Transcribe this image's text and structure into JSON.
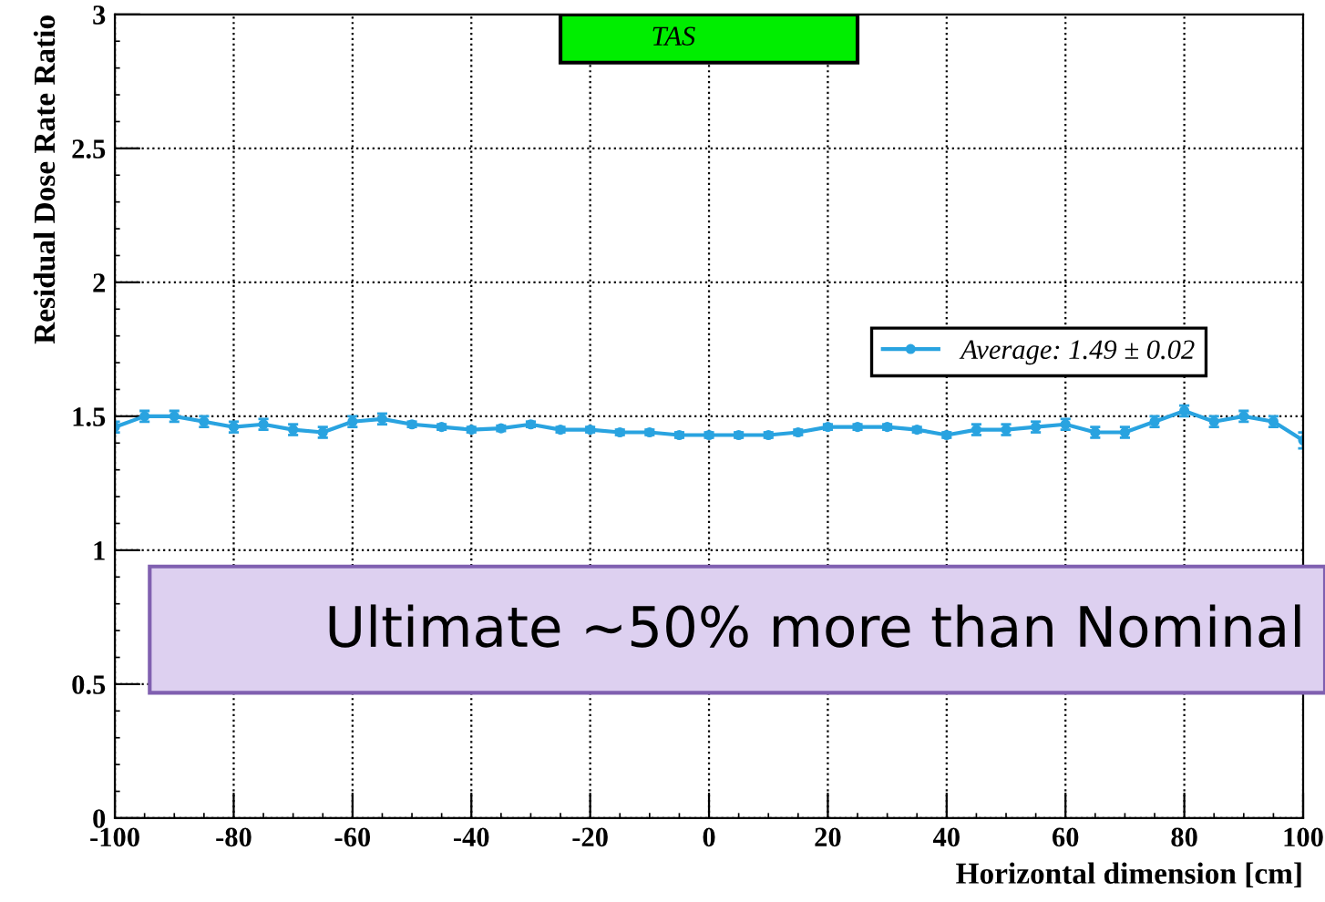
{
  "chart_data": {
    "type": "line",
    "xlabel": "Horizontal dimension [cm]",
    "ylabel": "Residual Dose Rate Ratio",
    "x": [
      -100,
      -95,
      -90,
      -85,
      -80,
      -75,
      -70,
      -65,
      -60,
      -55,
      -50,
      -45,
      -40,
      -35,
      -30,
      -25,
      -20,
      -15,
      -10,
      -5,
      0,
      5,
      10,
      15,
      20,
      25,
      30,
      35,
      40,
      45,
      50,
      55,
      60,
      65,
      70,
      75,
      80,
      85,
      90,
      95,
      100
    ],
    "series": [
      {
        "name": "Average: 1.49 ± 0.02",
        "color": "#29a3e0",
        "values": [
          1.46,
          1.5,
          1.5,
          1.48,
          1.46,
          1.47,
          1.45,
          1.44,
          1.48,
          1.49,
          1.47,
          1.46,
          1.45,
          1.455,
          1.47,
          1.45,
          1.45,
          1.44,
          1.44,
          1.43,
          1.43,
          1.43,
          1.43,
          1.44,
          1.46,
          1.46,
          1.46,
          1.45,
          1.43,
          1.45,
          1.45,
          1.46,
          1.47,
          1.44,
          1.44,
          1.48,
          1.52,
          1.48,
          1.5,
          1.48,
          1.41
        ],
        "errors": [
          0.02,
          0.02,
          0.02,
          0.02,
          0.02,
          0.02,
          0.02,
          0.02,
          0.02,
          0.02,
          0.01,
          0.01,
          0.01,
          0.01,
          0.01,
          0.01,
          0.01,
          0.01,
          0.01,
          0.01,
          0.01,
          0.01,
          0.01,
          0.01,
          0.01,
          0.01,
          0.01,
          0.01,
          0.01,
          0.02,
          0.02,
          0.02,
          0.02,
          0.02,
          0.02,
          0.02,
          0.02,
          0.02,
          0.02,
          0.02,
          0.03
        ]
      }
    ],
    "xlim": [
      -100,
      100
    ],
    "ylim": [
      0,
      3
    ],
    "xticks": [
      -100,
      -80,
      -60,
      -40,
      -20,
      0,
      20,
      40,
      60,
      80,
      100
    ],
    "yticks": [
      0,
      0.5,
      1,
      1.5,
      2,
      2.5,
      3
    ],
    "grid": true,
    "legend": "right",
    "marker": "circle",
    "line_style": "solid",
    "annotations": [
      "TAS",
      "Ultimate ~50% more than Nominal"
    ]
  }
}
